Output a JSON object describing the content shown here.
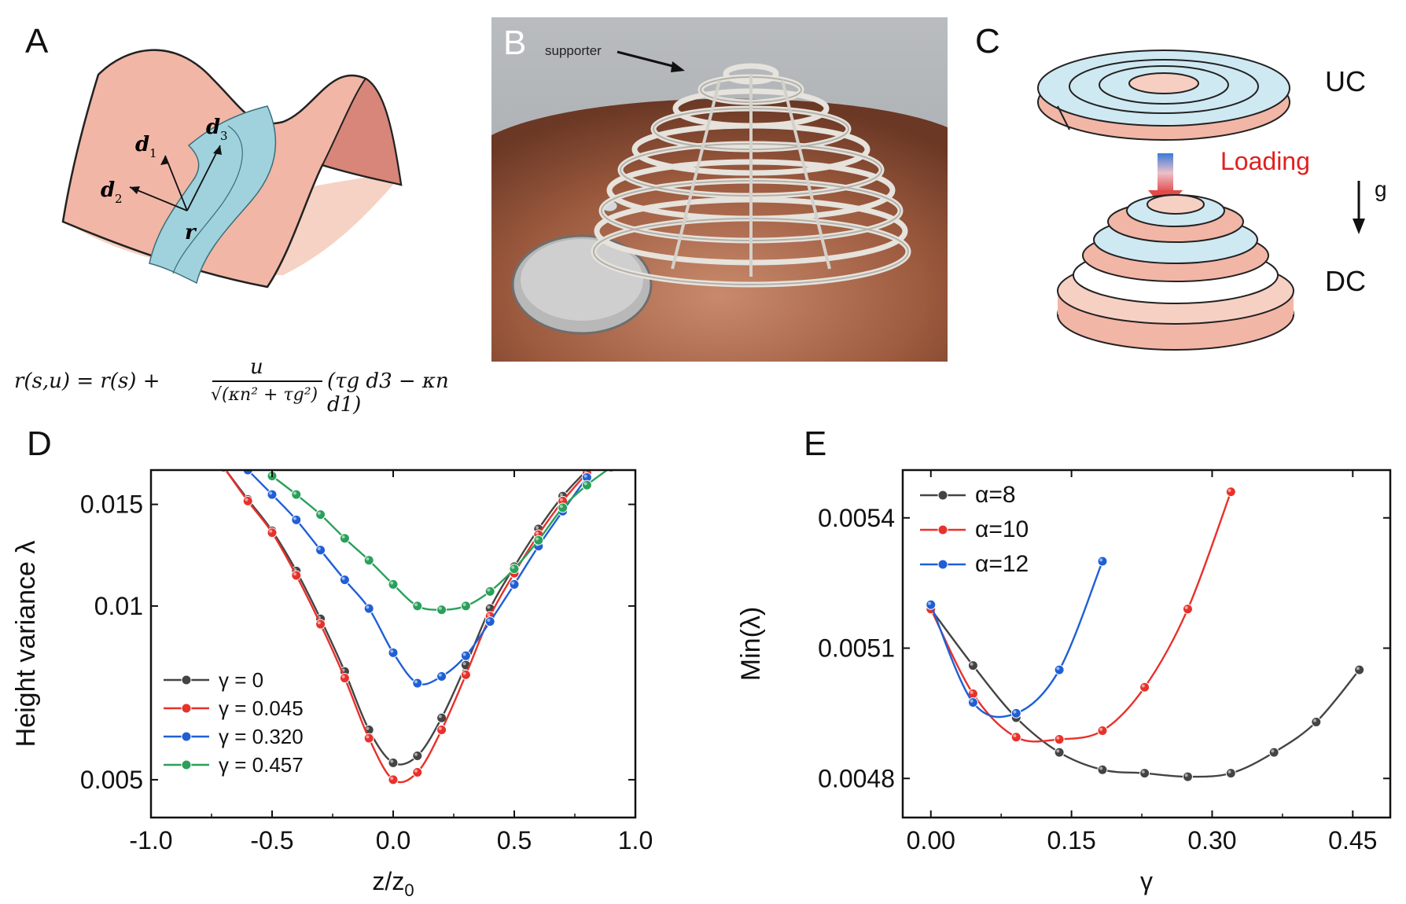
{
  "panels": {
    "A": {
      "letter": "A",
      "vectors": [
        "d",
        "1",
        "d",
        "2",
        "d",
        "3",
        "r"
      ],
      "equation": {
        "lhs": "r(s,u) = r(s) + ",
        "numerator": "u",
        "denominator": "√(κn² + τg²)",
        "rhs": "(τg d3 − κn d1)"
      }
    },
    "B": {
      "letter": "B",
      "annotation": "supporter"
    },
    "C": {
      "letter": "C",
      "top_label": "UC",
      "arrow_label": "Loading",
      "gravity_label": "g",
      "bottom_label": "DC"
    },
    "D": {
      "letter": "D"
    },
    "E": {
      "letter": "E"
    }
  },
  "colors": {
    "gray": "#444444",
    "red": "#e8312b",
    "blue": "#1f5fd6",
    "green": "#2aa05a",
    "salmon": "#f2b6a6",
    "teal": "#9fd2dc",
    "loading": "#e02020"
  },
  "chart_data": [
    {
      "id": "D",
      "type": "line",
      "xlabel": "z/z",
      "xlabel_sub": "0",
      "ylabel": "Height variance λ",
      "yscale": "log",
      "xlim": [
        -1.0,
        1.0
      ],
      "ylim": [
        0.0043,
        0.0172
      ],
      "xticks": [
        -1.0,
        -0.5,
        0.0,
        0.5,
        1.0
      ],
      "xtick_labels": [
        "-1.0",
        "-0.5",
        "0.0",
        "0.5",
        "1.0"
      ],
      "yticks": [
        0.005,
        0.01,
        0.015
      ],
      "ytick_labels": [
        "0.005",
        "0.01",
        "0.015"
      ],
      "legend_position": "bottom-left",
      "series": [
        {
          "name": "γ = 0",
          "color": "#444444",
          "x": [
            -0.7,
            -0.6,
            -0.5,
            -0.4,
            -0.3,
            -0.2,
            -0.1,
            0.0,
            0.1,
            0.2,
            0.3,
            0.4,
            0.5,
            0.6,
            0.7,
            0.8
          ],
          "y": [
            0.0174,
            0.0153,
            0.0135,
            0.0115,
            0.0095,
            0.0077,
            0.0061,
            0.00535,
            0.0055,
            0.0064,
            0.0079,
            0.0099,
            0.0117,
            0.0136,
            0.0155,
            0.0172
          ]
        },
        {
          "name": "γ = 0.045",
          "color": "#e8312b",
          "x": [
            -0.7,
            -0.6,
            -0.5,
            -0.4,
            -0.3,
            -0.2,
            -0.1,
            0.0,
            0.1,
            0.2,
            0.3,
            0.4,
            0.5,
            0.6,
            0.7,
            0.8
          ],
          "y": [
            0.0174,
            0.0152,
            0.0134,
            0.0113,
            0.0093,
            0.0075,
            0.0059,
            0.005,
            0.00515,
            0.0061,
            0.0076,
            0.0096,
            0.0114,
            0.0133,
            0.0152,
            0.017
          ]
        },
        {
          "name": "γ = 0.320",
          "color": "#1f5fd6",
          "x": [
            -0.6,
            -0.5,
            -0.4,
            -0.3,
            -0.2,
            -0.1,
            0.0,
            0.1,
            0.2,
            0.3,
            0.4,
            0.5,
            0.6,
            0.7,
            0.8
          ],
          "y": [
            0.0172,
            0.0156,
            0.0141,
            0.0125,
            0.0111,
            0.0099,
            0.0083,
            0.00735,
            0.00755,
            0.0082,
            0.0094,
            0.0109,
            0.0127,
            0.0146,
            0.0167
          ]
        },
        {
          "name": "γ = 0.457",
          "color": "#2aa05a",
          "x": [
            -0.5,
            -0.4,
            -0.3,
            -0.2,
            -0.1,
            0.0,
            0.1,
            0.2,
            0.3,
            0.4,
            0.5,
            0.6,
            0.7,
            0.8,
            0.9
          ],
          "y": [
            0.0168,
            0.0156,
            0.0144,
            0.0131,
            0.012,
            0.0109,
            0.01,
            0.00985,
            0.01,
            0.0106,
            0.0116,
            0.013,
            0.0148,
            0.0162,
            0.0174
          ]
        }
      ]
    },
    {
      "id": "E",
      "type": "line",
      "xlabel": "γ",
      "ylabel": "Min(λ)",
      "xlim": [
        -0.03,
        0.49
      ],
      "ylim": [
        0.00471,
        0.00551
      ],
      "xticks": [
        0.0,
        0.15,
        0.3,
        0.45
      ],
      "xtick_labels": [
        "0.00",
        "0.15",
        "0.30",
        "0.45"
      ],
      "yticks": [
        0.0048,
        0.0051,
        0.0054
      ],
      "ytick_labels": [
        "0.0048",
        "0.0051",
        "0.0054"
      ],
      "legend_position": "top-left",
      "series": [
        {
          "name": "α=8",
          "color": "#444444",
          "x": [
            0.0,
            0.045,
            0.091,
            0.137,
            0.183,
            0.228,
            0.274,
            0.32,
            0.366,
            0.411,
            0.457
          ],
          "y": [
            0.00519,
            0.00506,
            0.00494,
            0.00486,
            0.00482,
            0.004812,
            0.004804,
            0.004812,
            0.00486,
            0.00493,
            0.00505
          ]
        },
        {
          "name": "α=10",
          "color": "#e8312b",
          "x": [
            0.0,
            0.045,
            0.091,
            0.137,
            0.183,
            0.228,
            0.274,
            0.32
          ],
          "y": [
            0.00519,
            0.004995,
            0.004895,
            0.00489,
            0.00491,
            0.00501,
            0.00519,
            0.00546
          ]
        },
        {
          "name": "α=12",
          "color": "#1f5fd6",
          "x": [
            0.0,
            0.045,
            0.091,
            0.137,
            0.183
          ],
          "y": [
            0.0052,
            0.004975,
            0.00495,
            0.00505,
            0.0053
          ]
        }
      ]
    }
  ]
}
